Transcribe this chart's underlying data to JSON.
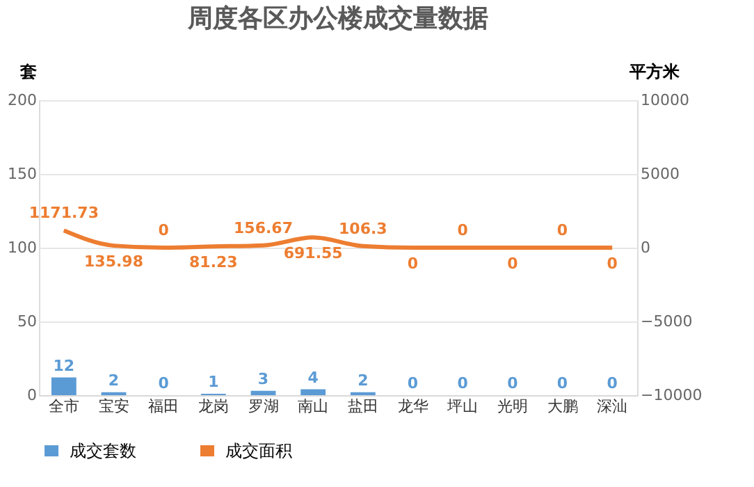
{
  "chart_data": {
    "type": "bar",
    "title": "周度各区办公楼成交量数据",
    "ylabel": "套",
    "y2label": "平方米",
    "categories": [
      "全市",
      "宝安",
      "福田",
      "龙岗",
      "罗湖",
      "南山",
      "盐田",
      "龙华",
      "坪山",
      "光明",
      "大鹏",
      "深汕"
    ],
    "series": [
      {
        "name": "成交套数",
        "color": "#5b9bd5",
        "values": [
          12,
          2,
          0,
          1,
          3,
          4,
          2,
          0,
          0,
          0,
          0,
          0
        ]
      },
      {
        "name": "成交面积",
        "type": "line",
        "axis": "y2",
        "color": "#ed7d31",
        "values": [
          1171.73,
          135.98,
          0,
          81.23,
          156.67,
          691.55,
          106.3,
          0,
          0,
          0,
          0,
          0
        ]
      }
    ],
    "ylim": [
      0,
      200
    ],
    "yticks": [
      0,
      50,
      100,
      150,
      200
    ],
    "y2lim": [
      -10000,
      10000
    ],
    "y2ticks": [
      -10000,
      -5000,
      0,
      5000,
      10000
    ],
    "data_labels": true,
    "grid": "y",
    "legend": "bottom",
    "marker": "none",
    "line_style": "solid"
  }
}
